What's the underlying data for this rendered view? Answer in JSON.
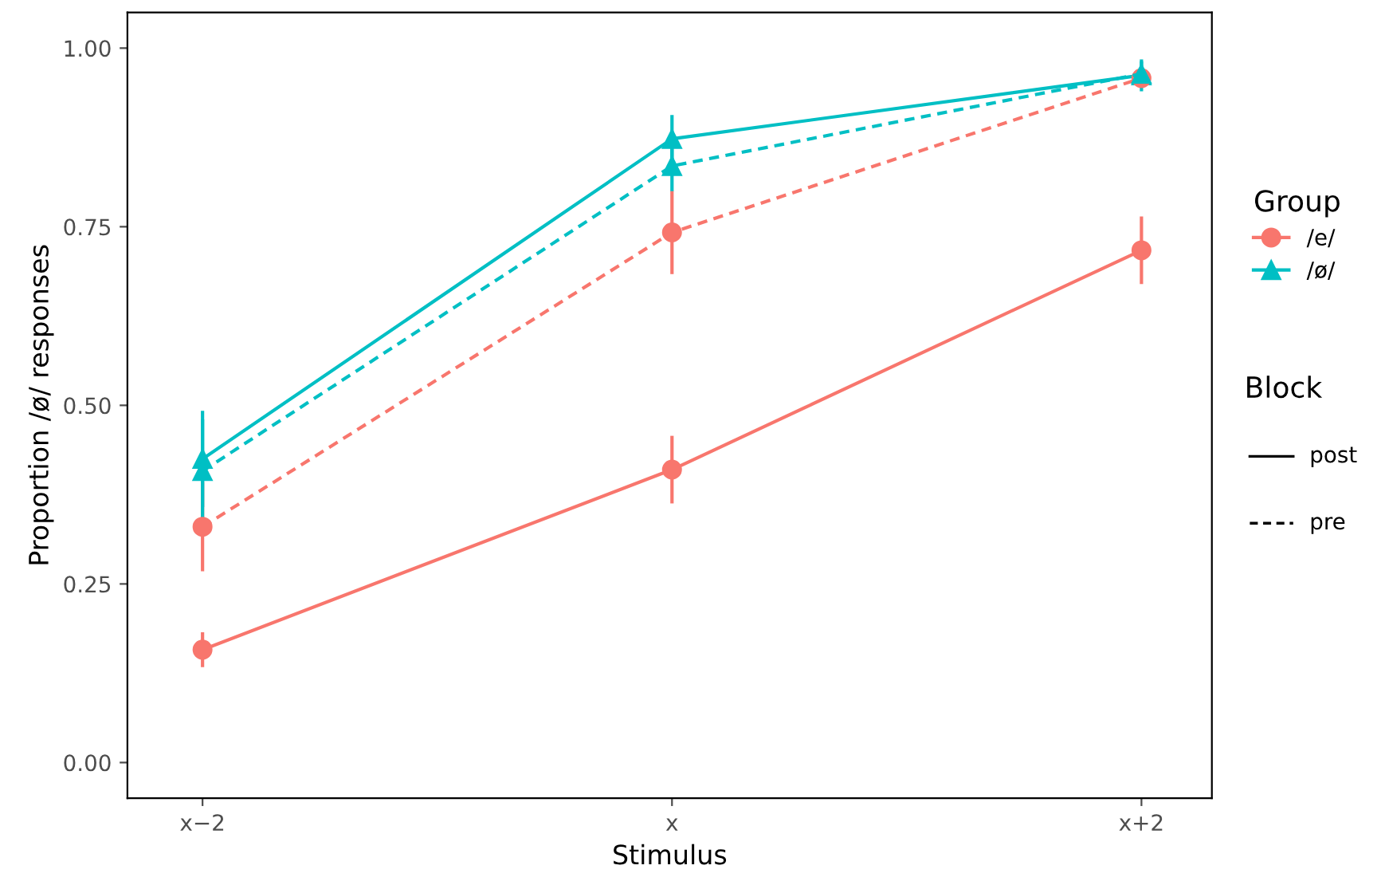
{
  "chart_data": {
    "type": "line",
    "xlabel": "Stimulus",
    "ylabel": "Proportion /ø/ responses",
    "categories": [
      "x−2",
      "x",
      "x+2"
    ],
    "series": [
      {
        "name": "/e/",
        "color": "#f8766d",
        "marker": "circle",
        "line_style": "solid",
        "values": [
          0.158,
          0.41,
          0.717
        ],
        "errors": [
          0.022,
          0.045,
          0.045
        ]
      },
      {
        "name": "/ø/",
        "color": "#00bfc4",
        "marker": "triangle",
        "line_style": "solid",
        "values": [
          0.425,
          0.873,
          0.962
        ],
        "errors": [
          0.065,
          0.031,
          0.02
        ]
      },
      {
        "color": "#f8766d",
        "marker": "circle",
        "line_style": "dashed",
        "values": [
          0.33,
          0.742,
          0.958
        ],
        "errors": [
          0.06,
          0.056,
          0.01
        ]
      },
      {
        "color": "#00bfc4",
        "marker": "triangle",
        "line_style": "dashed",
        "values": [
          0.408,
          0.835,
          0.964
        ],
        "errors": [
          0.07,
          0.033,
          0.015
        ]
      }
    ],
    "legend_title": "Group",
    "annotations": [
      "Block",
      "post",
      "pre"
    ],
    "legend": "right",
    "ylim": [
      -0.05,
      1.05
    ],
    "yticks": [
      {
        "value": 0,
        "label": "0.00"
      },
      {
        "value": 0.25,
        "label": "0.25"
      },
      {
        "value": 0.5,
        "label": "0.50"
      },
      {
        "value": 0.75,
        "label": "0.75"
      },
      {
        "value": 1,
        "label": "1.00"
      }
    ],
    "grid": false
  }
}
